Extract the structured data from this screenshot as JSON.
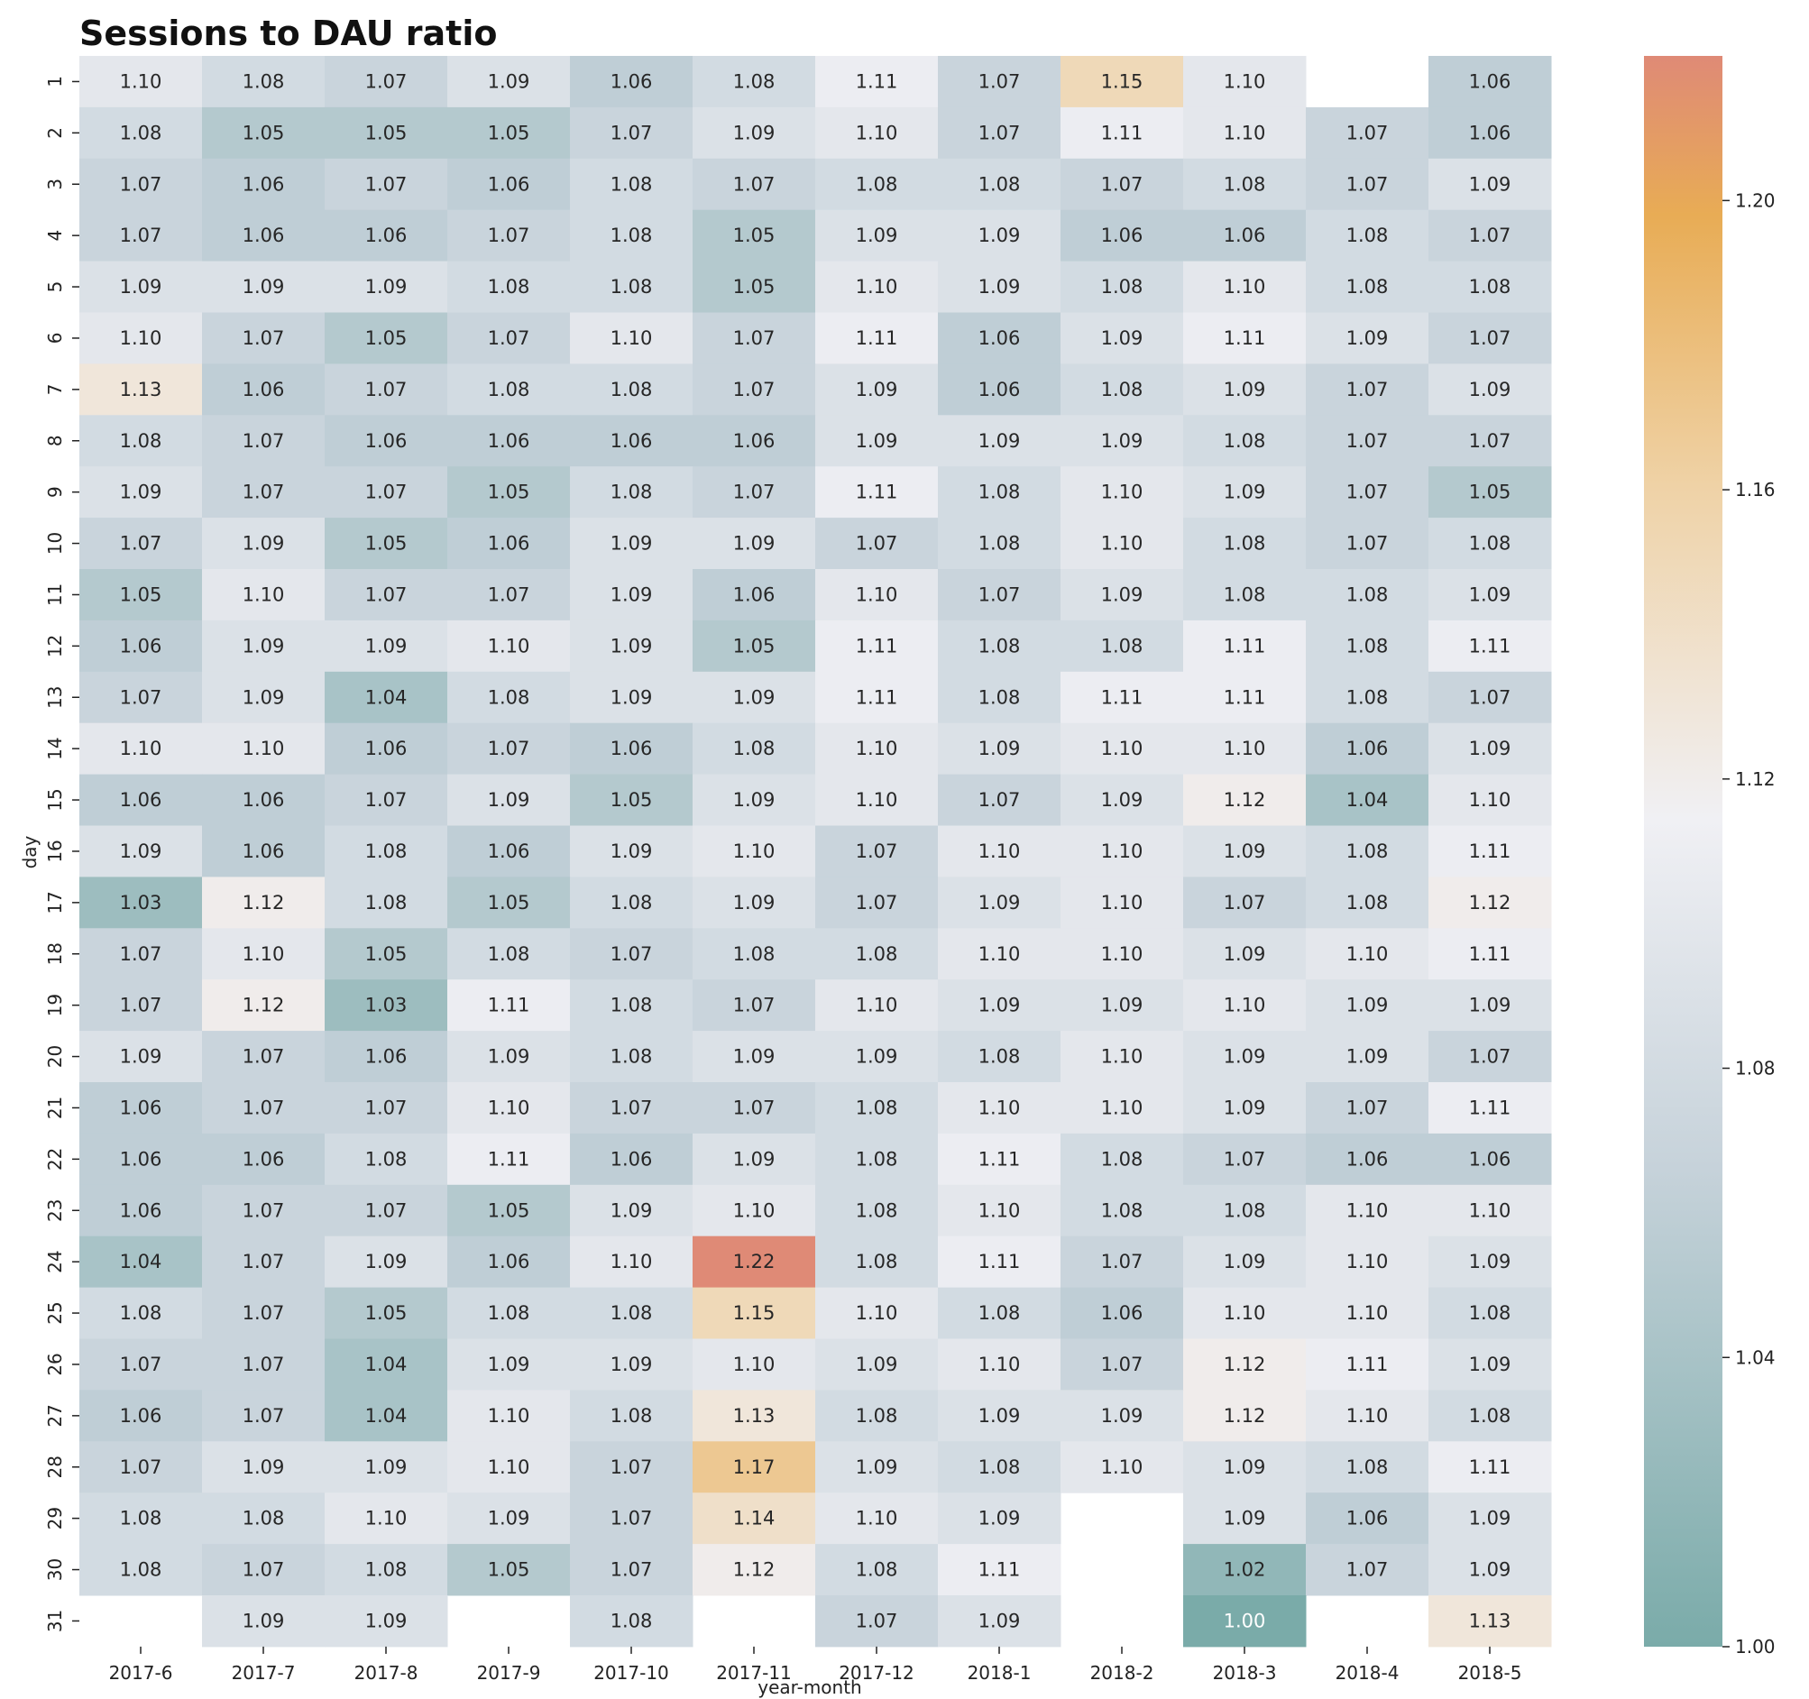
{
  "chart_data": {
    "type": "heatmap",
    "title": "Sessions to DAU ratio",
    "xlabel": "year-month",
    "ylabel": "day",
    "x": [
      "2017-6",
      "2017-7",
      "2017-8",
      "2017-9",
      "2017-10",
      "2017-11",
      "2017-12",
      "2018-1",
      "2018-2",
      "2018-3",
      "2018-4",
      "2018-5"
    ],
    "y": [
      "1",
      "2",
      "3",
      "4",
      "5",
      "6",
      "7",
      "8",
      "9",
      "10",
      "11",
      "12",
      "13",
      "14",
      "15",
      "16",
      "17",
      "18",
      "19",
      "20",
      "21",
      "22",
      "23",
      "24",
      "25",
      "26",
      "27",
      "28",
      "29",
      "30",
      "31"
    ],
    "values": [
      [
        1.1,
        1.08,
        1.07,
        1.09,
        1.06,
        1.08,
        1.11,
        1.07,
        1.15,
        1.1,
        null,
        1.06
      ],
      [
        1.08,
        1.05,
        1.05,
        1.05,
        1.07,
        1.09,
        1.1,
        1.07,
        1.11,
        1.1,
        1.07,
        1.06
      ],
      [
        1.07,
        1.06,
        1.07,
        1.06,
        1.08,
        1.07,
        1.08,
        1.08,
        1.07,
        1.08,
        1.07,
        1.09
      ],
      [
        1.07,
        1.06,
        1.06,
        1.07,
        1.08,
        1.05,
        1.09,
        1.09,
        1.06,
        1.06,
        1.08,
        1.07
      ],
      [
        1.09,
        1.09,
        1.09,
        1.08,
        1.08,
        1.05,
        1.1,
        1.09,
        1.08,
        1.1,
        1.08,
        1.08
      ],
      [
        1.1,
        1.07,
        1.05,
        1.07,
        1.1,
        1.07,
        1.11,
        1.06,
        1.09,
        1.11,
        1.09,
        1.07
      ],
      [
        1.13,
        1.06,
        1.07,
        1.08,
        1.08,
        1.07,
        1.09,
        1.06,
        1.08,
        1.09,
        1.07,
        1.09
      ],
      [
        1.08,
        1.07,
        1.06,
        1.06,
        1.06,
        1.06,
        1.09,
        1.09,
        1.09,
        1.08,
        1.07,
        1.07
      ],
      [
        1.09,
        1.07,
        1.07,
        1.05,
        1.08,
        1.07,
        1.11,
        1.08,
        1.1,
        1.09,
        1.07,
        1.05
      ],
      [
        1.07,
        1.09,
        1.05,
        1.06,
        1.09,
        1.09,
        1.07,
        1.08,
        1.1,
        1.08,
        1.07,
        1.08
      ],
      [
        1.05,
        1.1,
        1.07,
        1.07,
        1.09,
        1.06,
        1.1,
        1.07,
        1.09,
        1.08,
        1.08,
        1.09
      ],
      [
        1.06,
        1.09,
        1.09,
        1.1,
        1.09,
        1.05,
        1.11,
        1.08,
        1.08,
        1.11,
        1.08,
        1.11
      ],
      [
        1.07,
        1.09,
        1.04,
        1.08,
        1.09,
        1.09,
        1.11,
        1.08,
        1.11,
        1.11,
        1.08,
        1.07
      ],
      [
        1.1,
        1.1,
        1.06,
        1.07,
        1.06,
        1.08,
        1.1,
        1.09,
        1.1,
        1.1,
        1.06,
        1.09
      ],
      [
        1.06,
        1.06,
        1.07,
        1.09,
        1.05,
        1.09,
        1.1,
        1.07,
        1.09,
        1.12,
        1.04,
        1.1
      ],
      [
        1.09,
        1.06,
        1.08,
        1.06,
        1.09,
        1.1,
        1.07,
        1.1,
        1.1,
        1.09,
        1.08,
        1.11
      ],
      [
        1.03,
        1.12,
        1.08,
        1.05,
        1.08,
        1.09,
        1.07,
        1.09,
        1.1,
        1.07,
        1.08,
        1.12
      ],
      [
        1.07,
        1.1,
        1.05,
        1.08,
        1.07,
        1.08,
        1.08,
        1.1,
        1.1,
        1.09,
        1.1,
        1.11
      ],
      [
        1.07,
        1.12,
        1.03,
        1.11,
        1.08,
        1.07,
        1.1,
        1.09,
        1.09,
        1.1,
        1.09,
        1.09
      ],
      [
        1.09,
        1.07,
        1.06,
        1.09,
        1.08,
        1.09,
        1.09,
        1.08,
        1.1,
        1.09,
        1.09,
        1.07
      ],
      [
        1.06,
        1.07,
        1.07,
        1.1,
        1.07,
        1.07,
        1.08,
        1.1,
        1.1,
        1.09,
        1.07,
        1.11
      ],
      [
        1.06,
        1.06,
        1.08,
        1.11,
        1.06,
        1.09,
        1.08,
        1.11,
        1.08,
        1.07,
        1.06,
        1.06
      ],
      [
        1.06,
        1.07,
        1.07,
        1.05,
        1.09,
        1.1,
        1.08,
        1.1,
        1.08,
        1.08,
        1.1,
        1.1
      ],
      [
        1.04,
        1.07,
        1.09,
        1.06,
        1.1,
        1.22,
        1.08,
        1.11,
        1.07,
        1.09,
        1.1,
        1.09
      ],
      [
        1.08,
        1.07,
        1.05,
        1.08,
        1.08,
        1.15,
        1.1,
        1.08,
        1.06,
        1.1,
        1.1,
        1.08
      ],
      [
        1.07,
        1.07,
        1.04,
        1.09,
        1.09,
        1.1,
        1.09,
        1.1,
        1.07,
        1.12,
        1.11,
        1.09
      ],
      [
        1.06,
        1.07,
        1.04,
        1.1,
        1.08,
        1.13,
        1.08,
        1.09,
        1.09,
        1.12,
        1.1,
        1.08
      ],
      [
        1.07,
        1.09,
        1.09,
        1.1,
        1.07,
        1.17,
        1.09,
        1.08,
        1.1,
        1.09,
        1.08,
        1.11
      ],
      [
        1.08,
        1.08,
        1.1,
        1.09,
        1.07,
        1.14,
        1.1,
        1.09,
        null,
        1.09,
        1.06,
        1.09
      ],
      [
        1.08,
        1.07,
        1.08,
        1.05,
        1.07,
        1.12,
        1.08,
        1.11,
        null,
        1.02,
        1.07,
        1.09
      ],
      [
        null,
        1.09,
        1.09,
        null,
        1.08,
        null,
        1.07,
        1.09,
        null,
        1.0,
        null,
        1.13
      ]
    ],
    "value_format": "2 decimals",
    "colorbar": {
      "range": [
        1.0,
        1.22
      ],
      "ticks": [
        "1.00",
        "1.04",
        "1.08",
        "1.12",
        "1.16",
        "1.20"
      ],
      "colors": {
        "low": "#7aaba9",
        "mid_low": "#c6d2da",
        "mid": "#f0f0f4",
        "mid_high": "#efd2a6",
        "peak": "#e8ac55",
        "high": "#df8a76"
      }
    }
  }
}
